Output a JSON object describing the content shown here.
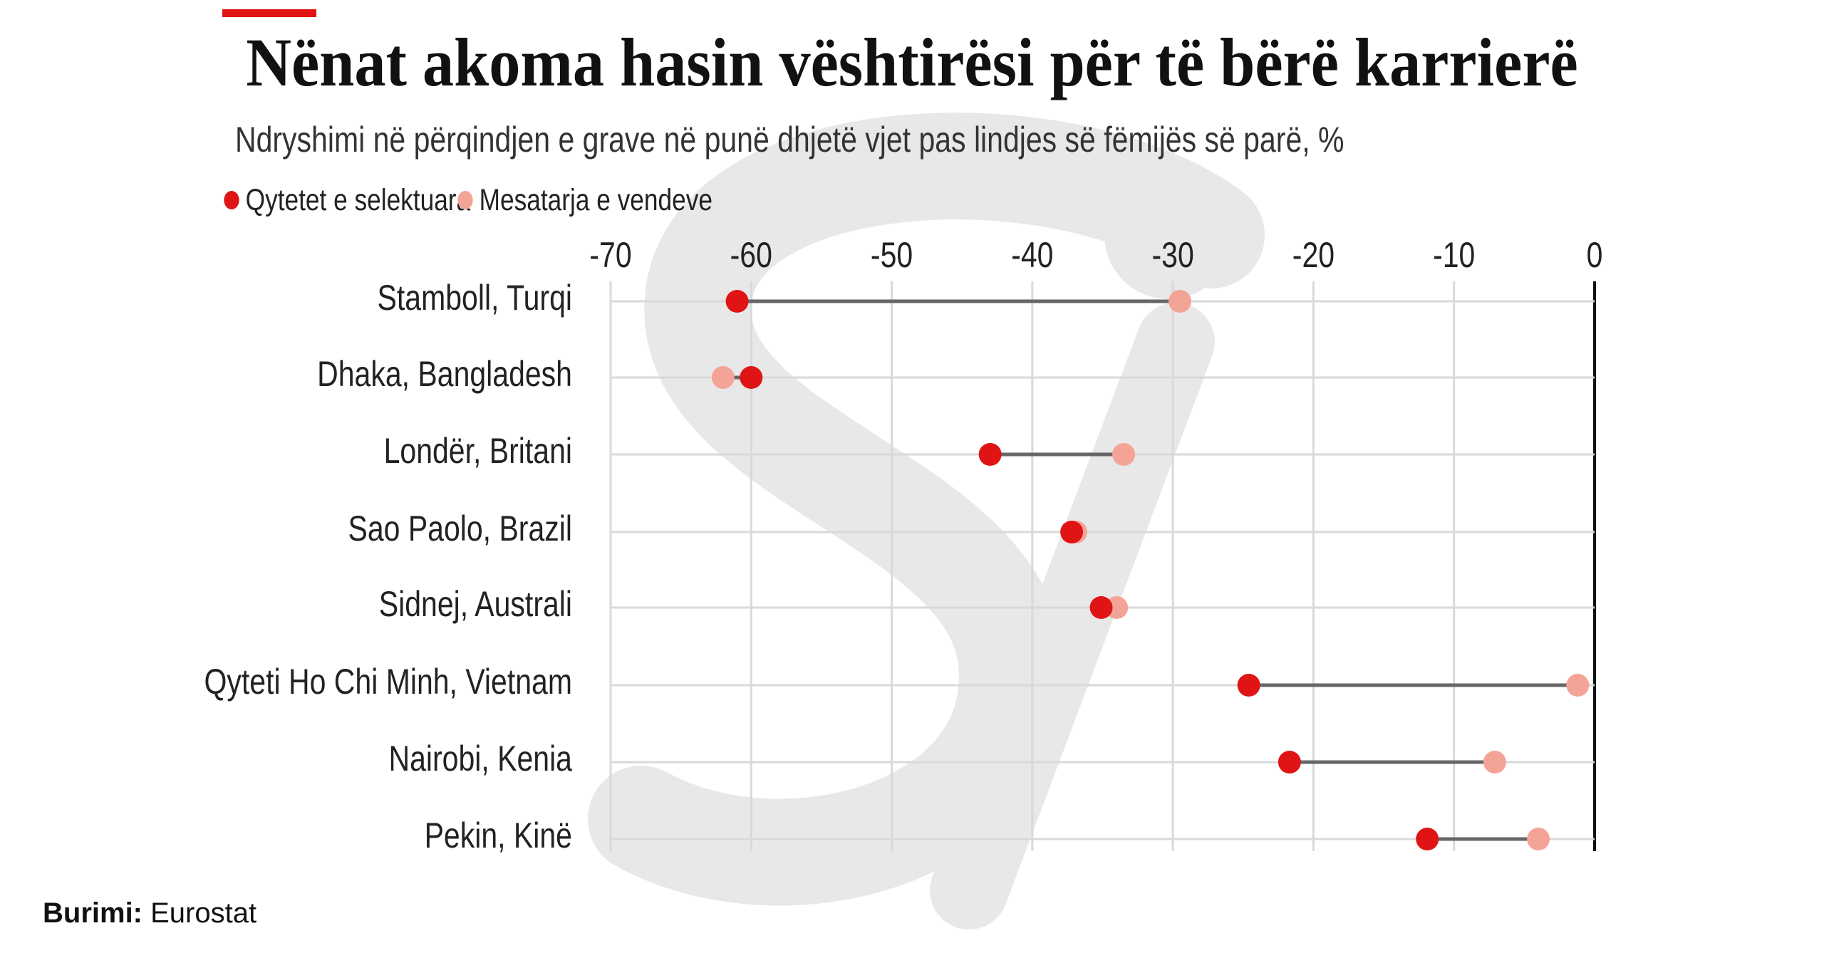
{
  "header": {
    "title": "Nënat akoma hasin vështirësi për të bërë karrierë",
    "subtitle": "Ndryshimi në përqindjen e grave në punë dhjetë vjet pas lindjes së fëmijës së parë, %"
  },
  "watermark": "Si",
  "source": {
    "label": "Burimi:",
    "value": "Eurostat"
  },
  "colors": {
    "selected": "#e01414",
    "average": "#f4a497",
    "accent": "#e01414",
    "line": "#666666",
    "grid": "#d9d9d9"
  },
  "chart_data": {
    "type": "dumbbell",
    "title": "Nënat akoma hasin vështirësi për të bërë karrierë",
    "subtitle": "Ndryshimi në përqindjen e grave në punë dhjetë vjet pas lindjes së fëmijës së parë, %",
    "xlim": [
      -70,
      0
    ],
    "xticks": [
      "-70",
      "-60",
      "-50",
      "-40",
      "-30",
      "-20",
      "-10",
      "0"
    ],
    "xtick_values": [
      -70,
      -60,
      -50,
      -40,
      -30,
      -20,
      -10,
      0
    ],
    "legend_position": "top-left",
    "grid": true,
    "categories": [
      "Stamboll, Turqi",
      "Dhaka, Bangladesh",
      "Londër, Britani",
      "Sao Paolo, Brazil",
      "Sidnej, Australi",
      "Qyteti Ho Chi Minh, Vietnam",
      "Nairobi, Kenia",
      "Pekin, Kinë"
    ],
    "series": [
      {
        "name": "Qytetet e selektuara",
        "values": [
          -61,
          -60,
          -43,
          -37.2,
          -35.1,
          -24.6,
          -21.7,
          -11.9
        ]
      },
      {
        "name": "Mesatarja e vendeve",
        "values": [
          -29.5,
          -62,
          -33.5,
          -36.9,
          -34,
          -1.2,
          -7.1,
          -4
        ]
      }
    ]
  }
}
